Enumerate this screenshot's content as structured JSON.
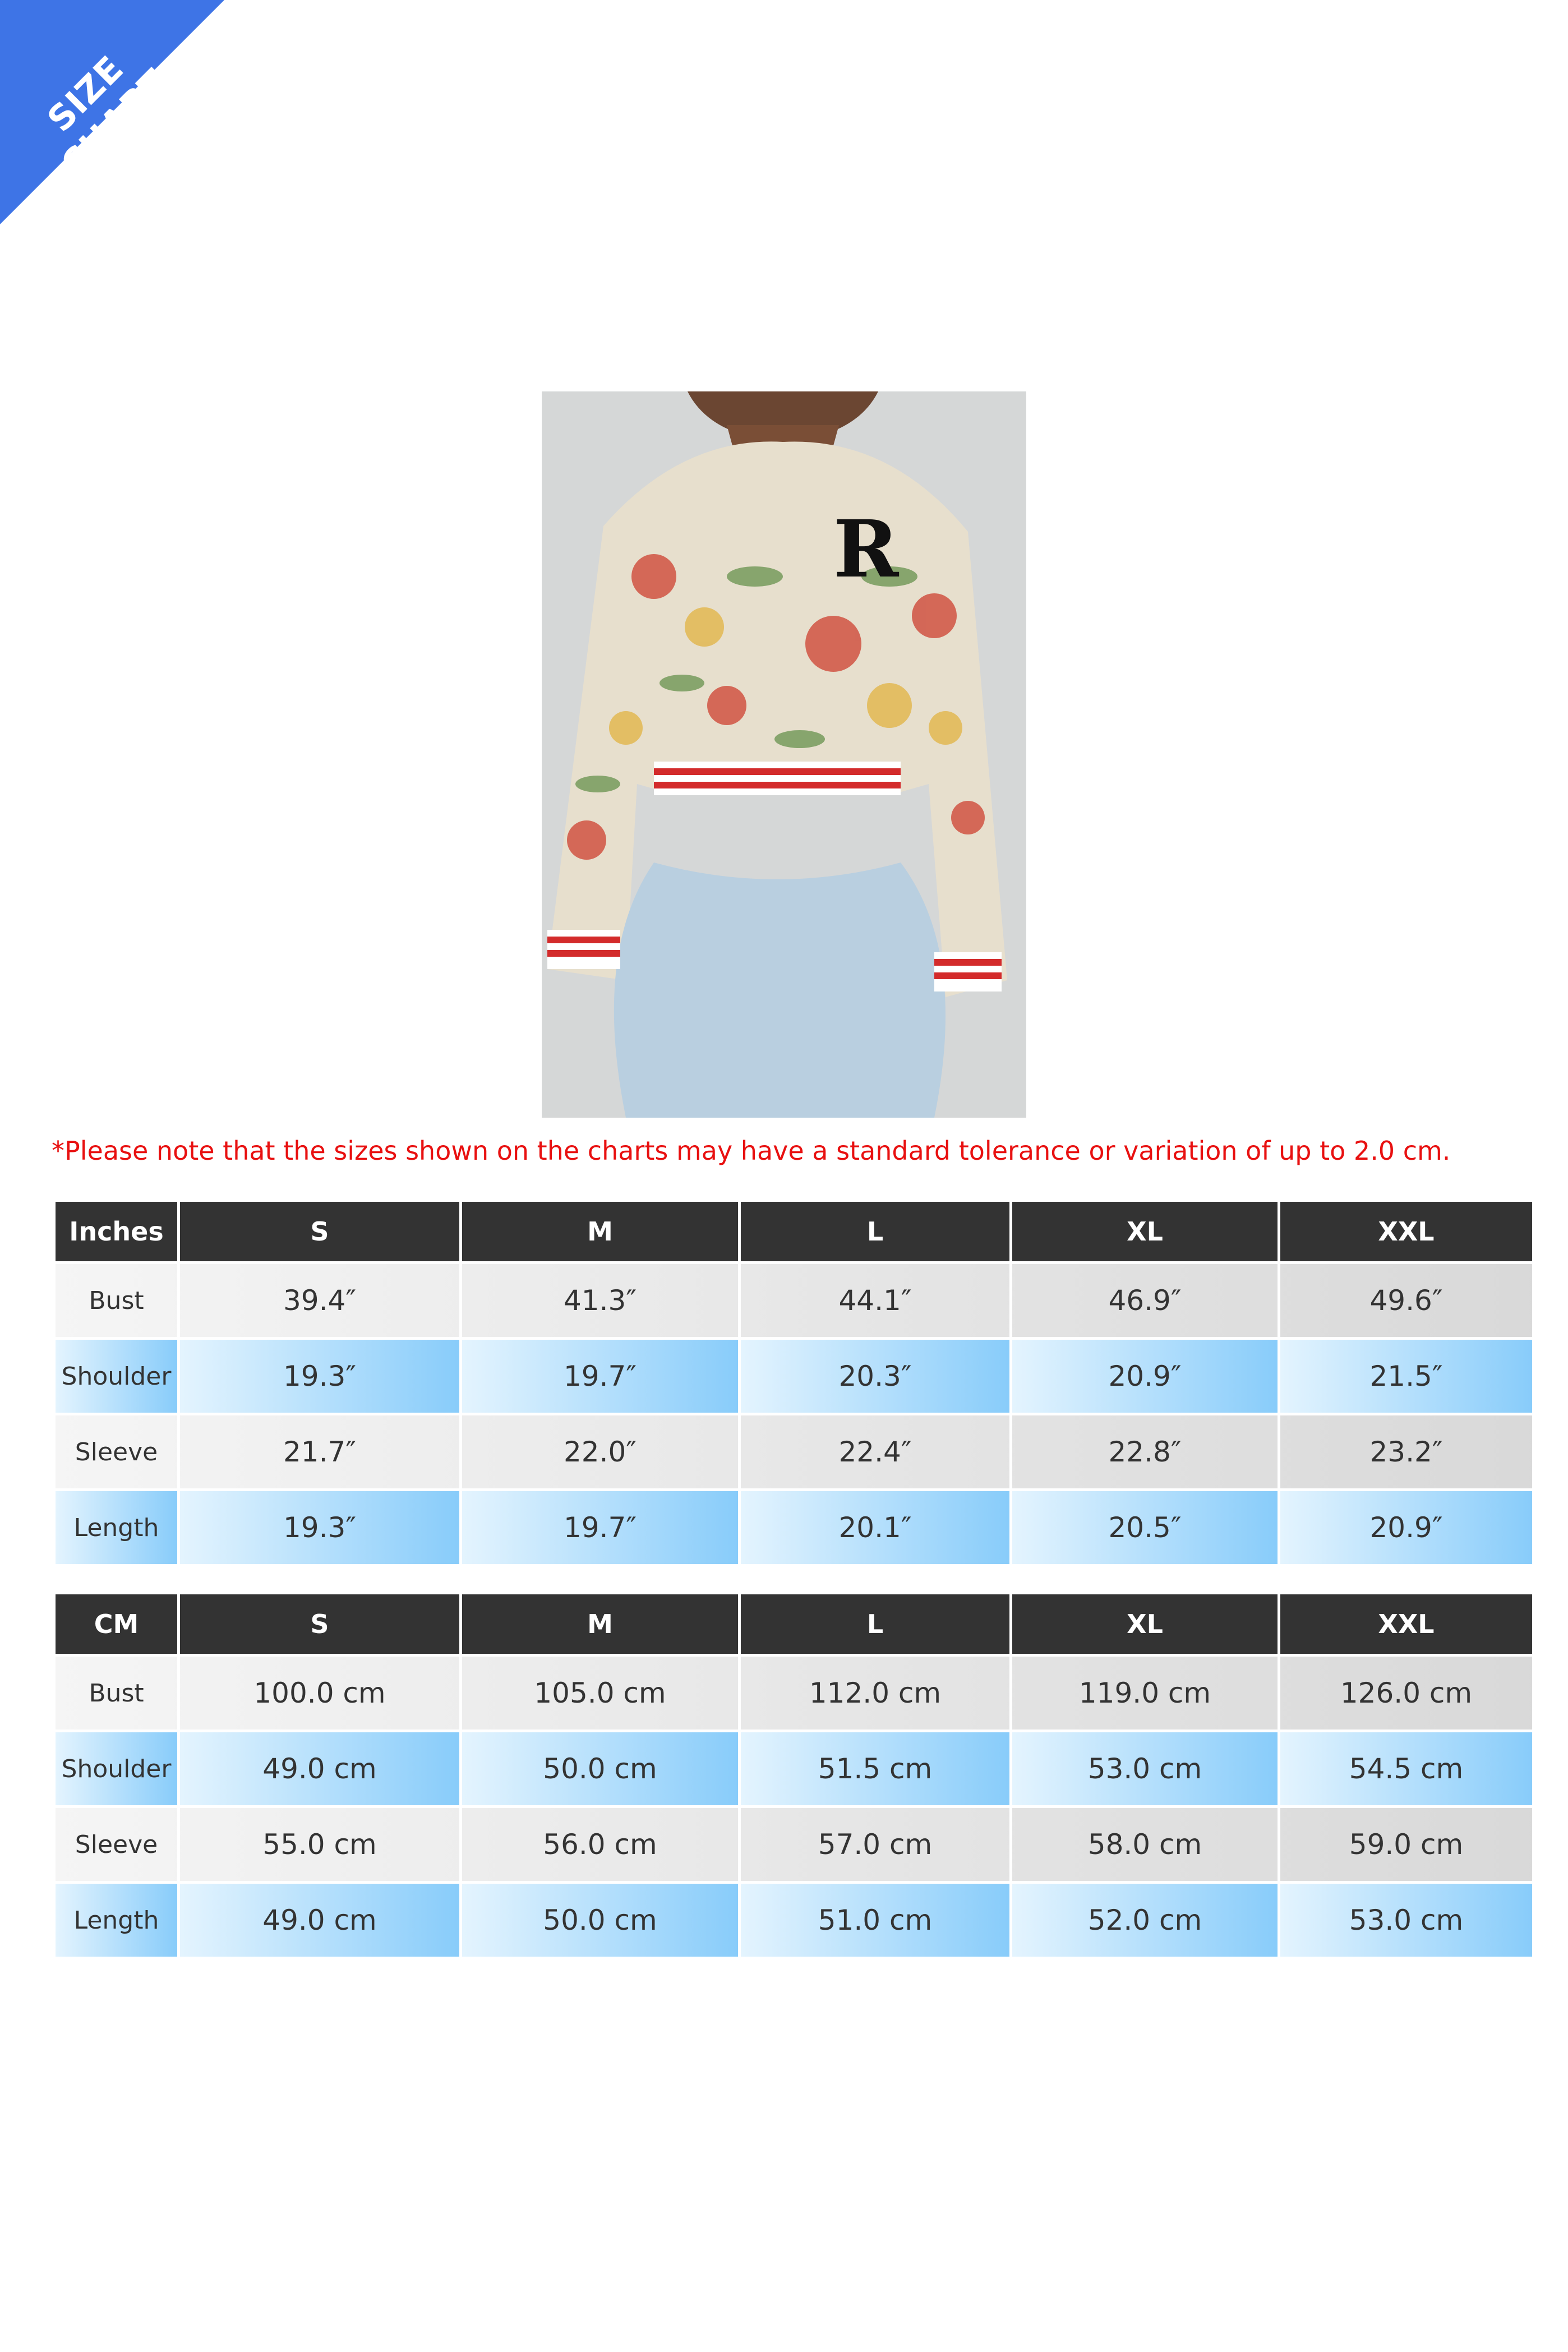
{
  "banner": {
    "label": "SIZE CHART",
    "color": "#3e74e6"
  },
  "note": "*Please note that the sizes shown on the charts may have a standard tolerance or variation of up to 2.0 cm.",
  "inches_table": {
    "headers": [
      "Inches",
      "S",
      "M",
      "L",
      "XL",
      "XXL"
    ],
    "rows": [
      [
        "Bust",
        "39.4″",
        "41.3″",
        "44.1″",
        "46.9″",
        "49.6″"
      ],
      [
        "Shoulder",
        "19.3″",
        "19.7″",
        "20.3″",
        "20.9″",
        "21.5″"
      ],
      [
        "Sleeve",
        "21.7″",
        "22.0″",
        "22.4″",
        "22.8″",
        "23.2″"
      ],
      [
        "Length",
        "19.3″",
        "19.7″",
        "20.1″",
        "20.5″",
        "20.9″"
      ]
    ]
  },
  "cm_table": {
    "headers": [
      "CM",
      "S",
      "M",
      "L",
      "XL",
      "XXL"
    ],
    "rows": [
      [
        "Bust",
        "100.0 cm",
        "105.0 cm",
        "112.0 cm",
        "119.0 cm",
        "126.0 cm"
      ],
      [
        "Shoulder",
        "49.0 cm",
        "50.0 cm",
        "51.5 cm",
        "53.0 cm",
        "54.5 cm"
      ],
      [
        "Sleeve",
        "55.0 cm",
        "56.0 cm",
        "57.0 cm",
        "58.0 cm",
        "59.0 cm"
      ],
      [
        "Length",
        "49.0 cm",
        "50.0 cm",
        "51.0 cm",
        "52.0 cm",
        "53.0 cm"
      ]
    ]
  },
  "colors": {
    "header_bg": "#333333",
    "note": "#e81010",
    "row_gray": "#e6e6e6",
    "row_blue": "#b0ddfc"
  }
}
